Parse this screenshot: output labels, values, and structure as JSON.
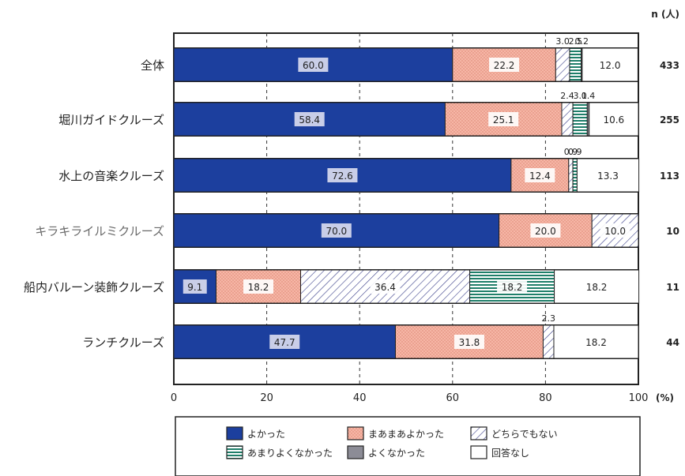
{
  "chart_data": {
    "type": "bar",
    "stacked": true,
    "orientation": "horizontal",
    "unit_label": "n (人)",
    "x_unit": "(%)",
    "xlim": [
      0,
      100
    ],
    "x_ticks": [
      "0",
      "20",
      "40",
      "60",
      "80",
      "100"
    ],
    "categories": [
      "全体",
      "堀川ガイドクルーズ",
      "水上の音楽クルーズ",
      "キラキライルミクルーズ",
      "船内バルーン装飾クルーズ",
      "ランチクルーズ"
    ],
    "n_values": [
      "433",
      "255",
      "113",
      "10",
      "11",
      "44"
    ],
    "series": [
      {
        "name": "よかった",
        "values": [
          60.0,
          58.4,
          72.6,
          70.0,
          9.1,
          47.7
        ],
        "labels": [
          "60.0",
          "58.4",
          "72.6",
          "70.0",
          "9.1",
          "47.7"
        ]
      },
      {
        "name": "まあまあよかった",
        "values": [
          22.2,
          25.1,
          12.4,
          20.0,
          18.2,
          31.8
        ],
        "labels": [
          "22.2",
          "25.1",
          "12.4",
          "20.0",
          "18.2",
          "31.8"
        ]
      },
      {
        "name": "どちらでもない",
        "values": [
          3.0,
          2.4,
          0.9,
          10.0,
          36.4,
          2.3
        ],
        "labels": [
          "3.0",
          "2.4",
          "0.9",
          "10.0",
          "36.4",
          "2.3"
        ]
      },
      {
        "name": "あまりよくなかった",
        "values": [
          2.5,
          3.1,
          0.9,
          0,
          18.2,
          0
        ],
        "labels": [
          "2.5",
          "3.1",
          "0.9",
          "",
          "18.2",
          ""
        ]
      },
      {
        "name": "よくなかった",
        "values": [
          0.2,
          0.4,
          0,
          0,
          0,
          0
        ],
        "labels": [
          "0.2",
          "0.4",
          "",
          "",
          "",
          ""
        ]
      },
      {
        "name": "回答なし",
        "values": [
          12.0,
          10.6,
          13.3,
          0,
          18.2,
          18.2
        ],
        "labels": [
          "12.0",
          "10.6",
          "13.3",
          "",
          "18.2",
          "18.2"
        ]
      }
    ]
  },
  "colors": {
    "よかった": "#1c3f9e",
    "まあまあよかった": "#f4b2a2",
    "どちらでもない": "#ffffff",
    "あまりよくなかった": "#1f7f6a",
    "よくなかった": "#8c8c96",
    "回答なし": "#ffffff",
    "frame": "#222222"
  }
}
